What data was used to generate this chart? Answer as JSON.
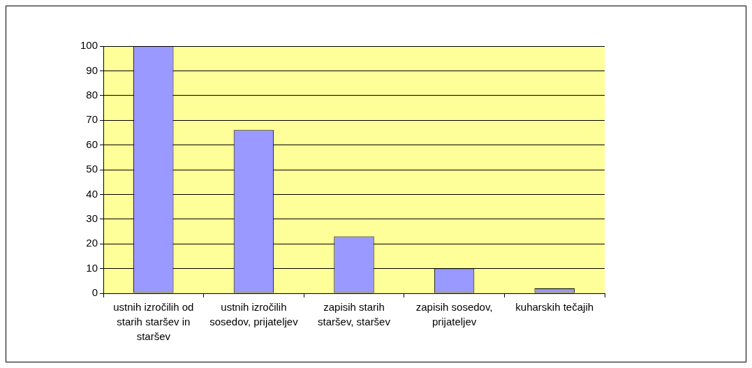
{
  "chart_data": {
    "type": "bar",
    "categories": [
      "ustnih izročilih od starih staršev in staršev",
      "ustnih izročilih sosedov, prijateljev",
      "zapisih starih staršev, staršev",
      "zapisih sosedov, prijateljev",
      "kuharskih tečajih"
    ],
    "values": [
      100,
      66,
      23,
      10,
      2
    ],
    "color": "#9999ff",
    "ylim": [
      0,
      100
    ],
    "yticks": [
      0,
      10,
      20,
      30,
      40,
      50,
      60,
      70,
      80,
      90,
      100
    ],
    "grid": "y"
  }
}
